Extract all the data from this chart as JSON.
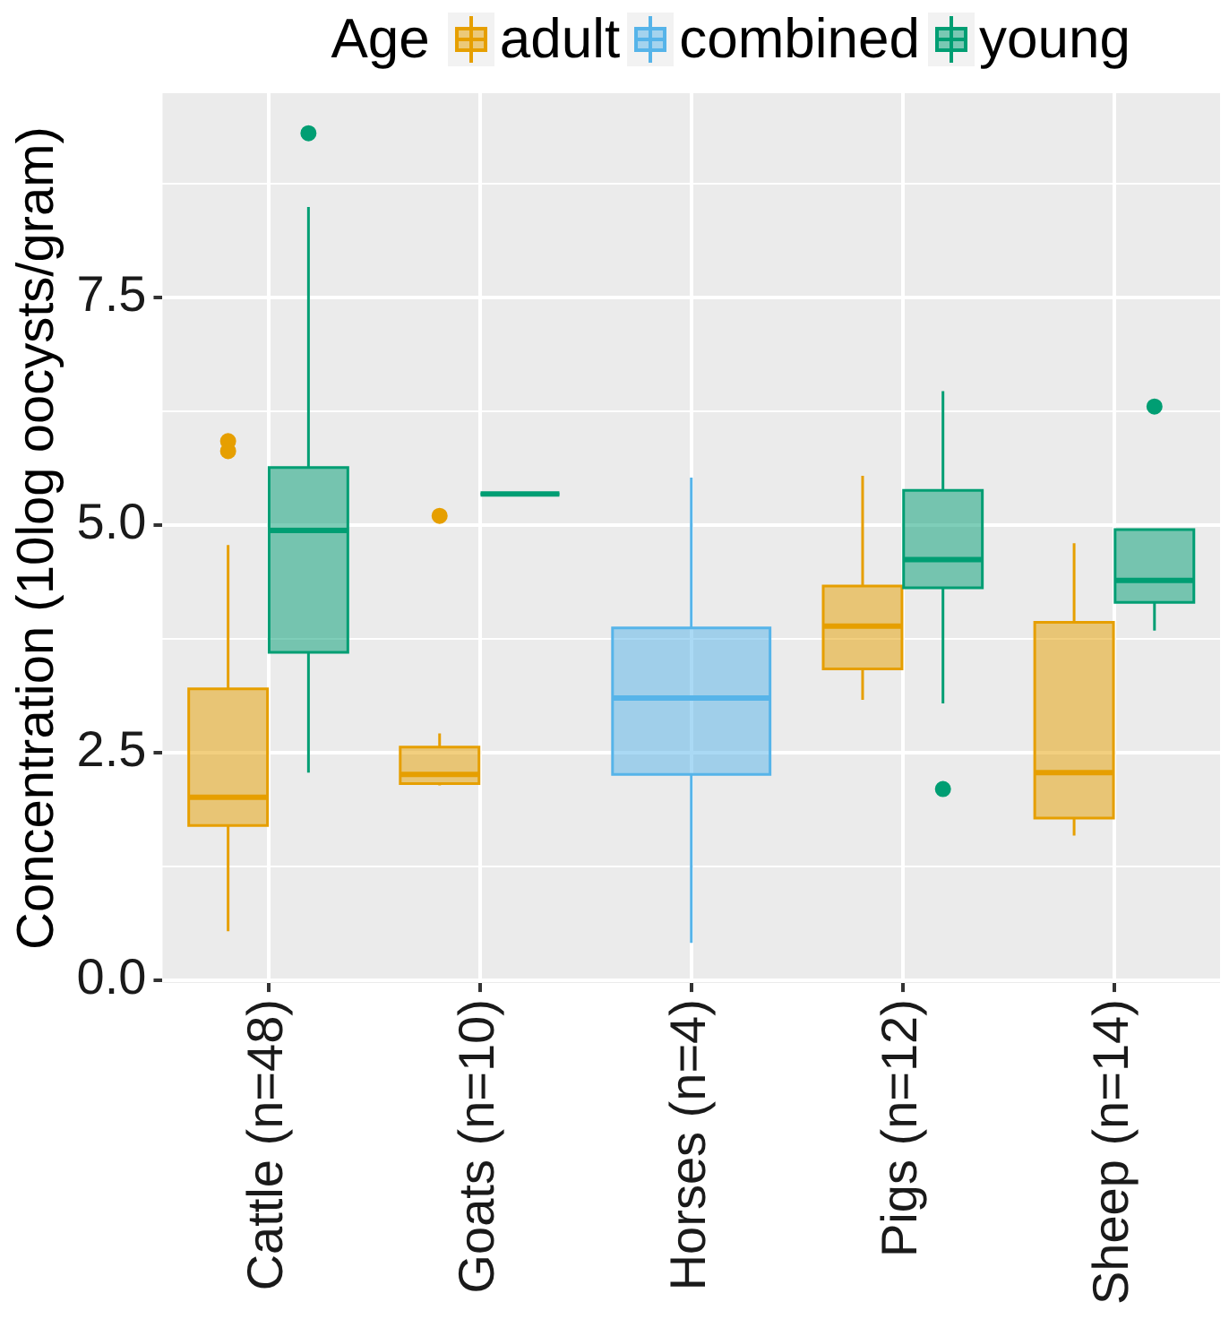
{
  "chart_data": {
    "type": "box",
    "ylabel": "Concentration (10log oocysts/gram)",
    "legend_title": "Age",
    "legend": "top",
    "grid": true,
    "categories": [
      "Cattle (n=48)",
      "Goats (n=10)",
      "Horses (n=4)",
      "Pigs (n=12)",
      "Sheep (n=14)"
    ],
    "ylim": [
      -0.03,
      9.74
    ],
    "yticks": [
      {
        "value": 0,
        "label": "0.0"
      },
      {
        "value": 1.25,
        "label": null
      },
      {
        "value": 2.5,
        "label": "2.5"
      },
      {
        "value": 3.75,
        "label": null
      },
      {
        "value": 5,
        "label": "5.0"
      },
      {
        "value": 6.25,
        "label": null
      },
      {
        "value": 7.5,
        "label": "7.5"
      },
      {
        "value": 8.75,
        "label": null
      }
    ],
    "series": [
      {
        "name": "adult",
        "color": "#e69f00",
        "boxes": [
          {
            "low": 0.54,
            "q1": 1.7,
            "median": 2.01,
            "q3": 3.2,
            "high": 4.78,
            "outliers": [
              5.92,
              5.81
            ]
          },
          {
            "low": 2.14,
            "q1": 2.16,
            "median": 2.26,
            "q3": 2.56,
            "high": 2.71,
            "outliers": [
              5.1
            ]
          },
          null,
          {
            "low": 3.08,
            "q1": 3.42,
            "median": 3.89,
            "q3": 4.33,
            "high": 5.54
          },
          {
            "low": 1.59,
            "q1": 1.78,
            "median": 2.28,
            "q3": 3.93,
            "high": 4.8
          }
        ]
      },
      {
        "name": "combined",
        "color": "#56b4e9",
        "boxes": [
          null,
          null,
          {
            "low": 0.41,
            "q1": 2.26,
            "median": 3.1,
            "q3": 3.87,
            "high": 5.52
          },
          null,
          null
        ]
      },
      {
        "name": "young",
        "color": "#009e73",
        "boxes": [
          {
            "low": 2.28,
            "q1": 3.6,
            "median": 4.94,
            "q3": 5.63,
            "high": 8.49,
            "outliers": [
              9.3
            ]
          },
          {
            "low": 5.34,
            "q1": 5.34,
            "median": 5.34,
            "q3": 5.34,
            "high": 5.34
          },
          null,
          {
            "low": 3.04,
            "q1": 4.31,
            "median": 4.62,
            "q3": 5.38,
            "high": 6.47,
            "outliers": [
              2.1
            ]
          },
          {
            "low": 3.84,
            "q1": 4.15,
            "median": 4.39,
            "q3": 4.95,
            "high": 4.95,
            "outliers": [
              6.3
            ]
          }
        ]
      }
    ]
  }
}
